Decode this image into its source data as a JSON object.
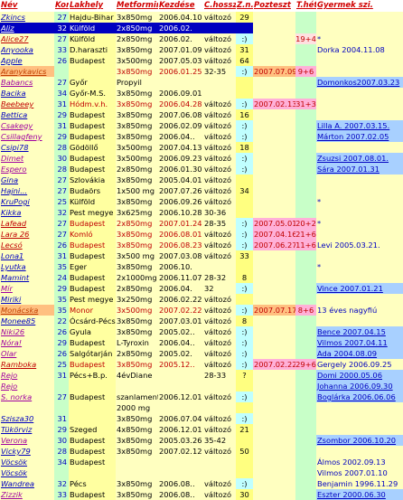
{
  "colors": {
    "name_bg": "#ffffc0",
    "kor_bg": "#c8ffc8",
    "lakhely_bg": "#ffffa0",
    "metformin_bg": "#ffffc0",
    "kezdes_bg": "#ffffc0",
    "chossz_bg": "#ffffc0",
    "zz_bg": "#ffff80",
    "poz_bg": "#ffffc0",
    "thet_bg": "#c8ffc8",
    "gyerm_bg": "#ffffc0",
    "sel_bg": "#0000c0",
    "sel_fg": "#ffffff",
    "blue_bg": "#a8d0ff",
    "cyan_bg": "#c0ffff",
    "orange_bg": "#ffc080",
    "purple_bg": "#c8a0ff",
    "pink_bg": "#ffb0d8",
    "grey_bg": "#c8c8c8",
    "blue": "#0000c0",
    "red": "#c00000",
    "purple": "#a000a0",
    "orange_text": "#c04000"
  },
  "headers": [
    "Név",
    "Kor",
    "Lakhely",
    "Metformin",
    "Kezdése",
    "C.hossza",
    "Z.n.",
    "Pozteszt",
    "T.hét",
    "Gyermek szi."
  ],
  "rows": [
    {
      "name": "Zkincs",
      "kor": "27",
      "lak": "Hajdu-Bihar",
      "met": "3x850mg",
      "kezd": "2006.04.10",
      "ch": "változó",
      "zz": "29",
      "poz": "",
      "thet": "",
      "gy": "",
      "style": "normal"
    },
    {
      "name": "Aliz",
      "kor": "32",
      "lak": "Külföld",
      "met": "2x850mg",
      "kezd": "2006.02.",
      "ch": "",
      "zz": "",
      "poz": "",
      "thet": "",
      "gy": "",
      "style": "selected"
    },
    {
      "name": "Alice27",
      "kor": "27",
      "lak": "Külföld",
      "met": "2x850mg",
      "kezd": "2006.02.",
      "ch": "változó",
      "zz": ":)",
      "poz": "",
      "thet": "19+4",
      "gy": "*",
      "style": "redname"
    },
    {
      "name": "Anyooka",
      "kor": "33",
      "lak": "D.haraszti",
      "met": "3x850mg",
      "kezd": "2007.01.09",
      "ch": "változó",
      "zz": "31",
      "poz": "",
      "thet": "",
      "gy": "Dorka    2004.11.08",
      "style": "normal"
    },
    {
      "name": "Apple",
      "kor": "26",
      "lak": "Budapest",
      "met": "3x500mg",
      "kezd": "2007.05.03",
      "ch": "változó",
      "zz": "64",
      "poz": "",
      "thet": "",
      "gy": "",
      "style": "normal"
    },
    {
      "name": "Aranykavics",
      "kor": "",
      "lak": "",
      "met": "3x850mg",
      "kezd": "2006.01.25",
      "ch": "32-35",
      "zz": ":)",
      "poz": "2007.07.09",
      "thet": "9+6",
      "gy": "",
      "style": "orange"
    },
    {
      "name": "Babancs",
      "kor": "27",
      "lak": "Győr",
      "met": "Propyil",
      "kezd": "",
      "ch": "",
      "zz": "",
      "poz": "",
      "thet": "",
      "gy": "Domonkos2007.03.23",
      "style": "purple"
    },
    {
      "name": "Bacika",
      "kor": "34",
      "lak": "Győr-M.S.",
      "met": "3x850mg",
      "kezd": "2006.09.01",
      "ch": "",
      "zz": "",
      "poz": "",
      "thet": "",
      "gy": "",
      "style": "normal"
    },
    {
      "name": "Beebeey",
      "kor": "31",
      "lak": "Hódm.v.h.",
      "met": "3x850mg",
      "kezd": "2006.04.28",
      "ch": "változó",
      "zz": ":)",
      "poz": "2007.02.13",
      "thet": "31+3",
      "gy": "",
      "style": "pink"
    },
    {
      "name": "Bettica",
      "kor": "29",
      "lak": "Budapest",
      "met": "3x850mg",
      "kezd": "2007.06.08",
      "ch": "változó",
      "zz": "16",
      "poz": "",
      "thet": "",
      "gy": "",
      "style": "normal"
    },
    {
      "name": "Csakegy",
      "kor": "31",
      "lak": "Budapest",
      "met": "3x850mg",
      "kezd": "2006.02.09",
      "ch": "változó",
      "zz": ":)",
      "poz": "",
      "thet": "",
      "gy": "Lilla A.    2007.03.15.",
      "style": "purple"
    },
    {
      "name": "Csillagfeny",
      "kor": "29",
      "lak": "Budapest",
      "met": "3x850mg",
      "kezd": "2006.04..",
      "ch": "változó",
      "zz": ":)",
      "poz": "",
      "thet": "",
      "gy": "Márton    2007.02.05",
      "style": "purple"
    },
    {
      "name": "Csipi78",
      "kor": "28",
      "lak": "Gödöllő",
      "met": "3x500mg",
      "kezd": "2007.04.13",
      "ch": "változó",
      "zz": "18",
      "poz": "",
      "thet": "",
      "gy": "",
      "style": "normal"
    },
    {
      "name": "Dimet",
      "kor": "30",
      "lak": "Budapest",
      "met": "3x500mg",
      "kezd": "2006.09.23",
      "ch": "változó",
      "zz": ":)",
      "poz": "",
      "thet": "",
      "gy": "Zsuzsi 2007.08.01.",
      "style": "purple"
    },
    {
      "name": "Espero",
      "kor": "28",
      "lak": "Budapest",
      "met": "2x850mg",
      "kezd": "2006.01.30",
      "ch": "változó",
      "zz": ":)",
      "poz": "",
      "thet": "",
      "gy": "Sára     2007.01.31",
      "style": "purple"
    },
    {
      "name": "Gina",
      "kor": "27",
      "lak": "Szlovákia",
      "met": "3x850mg",
      "kezd": "2005.04.01",
      "ch": "változó",
      "zz": "",
      "poz": "",
      "thet": "",
      "gy": "",
      "style": "normal"
    },
    {
      "name": "Hajni...",
      "kor": "27",
      "lak": "Budaörs",
      "met": "1x500 mg",
      "kezd": "2007.07.26",
      "ch": "változó",
      "zz": "34",
      "poz": "",
      "thet": "",
      "gy": "",
      "style": "normal"
    },
    {
      "name": "KruPogi",
      "kor": "25",
      "lak": "Külföld",
      "met": "3x850mg",
      "kezd": "2006.09.26",
      "ch": "változó",
      "zz": "",
      "poz": "",
      "thet": "",
      "gy": "*",
      "style": "normal"
    },
    {
      "name": "Kikka",
      "kor": "32",
      "lak": "Pest megye",
      "met": "3x625mg",
      "kezd": "2006.10.28",
      "ch": "30-36",
      "zz": "",
      "poz": "",
      "thet": "",
      "gy": "",
      "style": "normal"
    },
    {
      "name": "Lafead",
      "kor": "27",
      "lak": "Budapest",
      "met": "2x850mg",
      "kezd": "2007.01.24",
      "ch": "28-35",
      "zz": ":)",
      "poz": "2007.05.01",
      "thet": "20+2",
      "gy": "*",
      "style": "pink"
    },
    {
      "name": "Lara 26",
      "kor": "27",
      "lak": "Komló",
      "met": "3x850mg",
      "kezd": "2006.08.01",
      "ch": "változó",
      "zz": ":)",
      "poz": "2007.04.16",
      "thet": "21+6",
      "gy": "",
      "style": "pink"
    },
    {
      "name": "Lecsó",
      "kor": "26",
      "lak": "Budapest",
      "met": "3x850mg",
      "kezd": "2006.08.23",
      "ch": "változó",
      "zz": ":)",
      "poz": "2007.06.27",
      "thet": "11+6",
      "gy": "Levi 2005.03.21.",
      "style": "pink"
    },
    {
      "name": "Lona1",
      "kor": "31",
      "lak": "Budapest",
      "met": "3x500 mg",
      "kezd": "2007.03.08",
      "ch": "változó",
      "zz": "33",
      "poz": "",
      "thet": "",
      "gy": "",
      "style": "normal"
    },
    {
      "name": "Lyutka",
      "kor": "35",
      "lak": "Eger",
      "met": "3x850mg",
      "kezd": "2006.10.",
      "ch": "",
      "zz": "",
      "poz": "",
      "thet": "",
      "gy": "*",
      "style": "normal"
    },
    {
      "name": "Mamint",
      "kor": "24",
      "lak": "Budapest",
      "met": "2x1000mg",
      "kezd": "2006.11.07",
      "ch": "28-32",
      "zz": "8",
      "poz": "",
      "thet": "",
      "gy": "",
      "style": "normal"
    },
    {
      "name": "Mír",
      "kor": "29",
      "lak": "Budapest",
      "met": "2x850mg",
      "kezd": "2006.04.",
      "ch": "32",
      "zz": ":)",
      "poz": "",
      "thet": "",
      "gy": "Vince    2007.01.21",
      "style": "purple"
    },
    {
      "name": "Miriki",
      "kor": "35",
      "lak": "Pest megye",
      "met": "3x250mg",
      "kezd": "2006.02.22",
      "ch": "változó",
      "zz": "",
      "poz": "",
      "thet": "",
      "gy": "",
      "style": "normal"
    },
    {
      "name": "Monácska",
      "kor": "35",
      "lak": "Monor",
      "met": "3x500mg",
      "kezd": "2007.02.22",
      "ch": "változó",
      "zz": ":)",
      "poz": "2007.07.17",
      "thet": "8+6",
      "gy": "13 éves nagyfiú",
      "style": "orange"
    },
    {
      "name": "Monee85",
      "kor": "22",
      "lak": "Ócsárd-Pécs",
      "met": "3x850mg",
      "kezd": "2007.03.01",
      "ch": "változó",
      "zz": "8",
      "poz": "",
      "thet": "",
      "gy": "",
      "style": "normal"
    },
    {
      "name": "Niki26",
      "kor": "26",
      "lak": "Gyula",
      "met": "3x850mg",
      "kezd": "2005.02..",
      "ch": "változó",
      "zz": ":)",
      "poz": "",
      "thet": "",
      "gy": "Bence 2007.04.15",
      "style": "purple"
    },
    {
      "name": "Nóra!",
      "kor": "29",
      "lak": "Budapest",
      "met": "L-Tyroxin",
      "kezd": "2006.04..",
      "ch": "változó",
      "zz": ":)",
      "poz": "",
      "thet": "",
      "gy": "Vilmos  2007.04.11",
      "style": "purple"
    },
    {
      "name": "Olar",
      "kor": "26",
      "lak": "Salgótarján",
      "met": "2x850mg",
      "kezd": "2005.02.",
      "ch": "változó",
      "zz": ":)",
      "poz": "",
      "thet": "",
      "gy": "Ada     2004.08.09",
      "style": "purple"
    },
    {
      "name": "Ramboka",
      "kor": "25",
      "lak": "Budapest",
      "met": "3x850mg",
      "kezd": "2005.12..",
      "ch": "változó",
      "zz": ":)",
      "poz": "2007.02.22",
      "thet": "29+6",
      "gy": "Gergely  2006.09.25",
      "style": "pink"
    },
    {
      "name": "Rejo",
      "kor": "31",
      "lak": "Pécs+B.p.",
      "met": "4évDiane",
      "kezd": "",
      "ch": "28-33",
      "zz": "?",
      "poz": "",
      "thet": "",
      "gy": "Domi    2000.05.06",
      "style": "purple"
    },
    {
      "name": "Rejo",
      "kor": "",
      "lak": "",
      "met": "",
      "kezd": "",
      "ch": "",
      "zz": "",
      "poz": "",
      "thet": "",
      "gy": "Johanna 2006.09.30",
      "style": "purple"
    },
    {
      "name": "S. norka",
      "kor": "27",
      "lak": "Budapest",
      "met": "szanlament",
      "kezd": "2006.12.01",
      "ch": "változó",
      "zz": ":)",
      "poz": "",
      "thet": "",
      "gy": "Boglárka 2006.06.06",
      "style": "purple"
    },
    {
      "name": "",
      "kor": "",
      "lak": "",
      "met": "2000 mg",
      "kezd": "",
      "ch": "",
      "zz": "",
      "poz": "",
      "thet": "",
      "gy": "",
      "style": "normal"
    },
    {
      "name": "Szisza30",
      "kor": "31",
      "lak": "",
      "met": "3x850mg",
      "kezd": "2006.07.04",
      "ch": "változó",
      "zz": ":)",
      "poz": "",
      "thet": "",
      "gy": "",
      "style": "normal"
    },
    {
      "name": "Tükörviz",
      "kor": "29",
      "lak": "Szeged",
      "met": "4x850mg",
      "kezd": "2006.12.01",
      "ch": "változó",
      "zz": "21",
      "poz": "",
      "thet": "",
      "gy": "",
      "style": "normal"
    },
    {
      "name": "Verona",
      "kor": "30",
      "lak": "Budapest",
      "met": "3x850mg",
      "kezd": "2005.03.26",
      "ch": "35-42",
      "zz": "",
      "poz": "",
      "thet": "",
      "gy": "Zsombor 2006.10.20",
      "style": "purple"
    },
    {
      "name": "Vicky79",
      "kor": "28",
      "lak": "Budapest",
      "met": "3x850mg",
      "kezd": "2007.02.12",
      "ch": "változó",
      "zz": "50",
      "poz": "",
      "thet": "",
      "gy": "",
      "style": "normal"
    },
    {
      "name": "Vöcsök",
      "kor": "34",
      "lak": "Budapest",
      "met": "",
      "kezd": "",
      "ch": "",
      "zz": "",
      "poz": "",
      "thet": "",
      "gy": "Álmos    2002.09.13",
      "style": "normal"
    },
    {
      "name": "Vöcsök",
      "kor": "",
      "lak": "",
      "met": "",
      "kezd": "",
      "ch": "",
      "zz": "",
      "poz": "",
      "thet": "",
      "gy": "Vilmos   2007.01.10",
      "style": "normal"
    },
    {
      "name": "Wandrea",
      "kor": "32",
      "lak": "Pécs",
      "met": "3x850mg",
      "kezd": "2006.08..",
      "ch": "változó",
      "zz": ":)",
      "poz": "",
      "thet": "",
      "gy": "Benjamin 1996.11.29",
      "style": "normal"
    },
    {
      "name": "Zizzik",
      "kor": "33",
      "lak": "Budapest",
      "met": "3x850mg",
      "kezd": "2006.08..",
      "ch": "változó",
      "zz": "30",
      "poz": "",
      "thet": "",
      "gy": "Eszter   2000.06.30",
      "style": "purple"
    }
  ]
}
